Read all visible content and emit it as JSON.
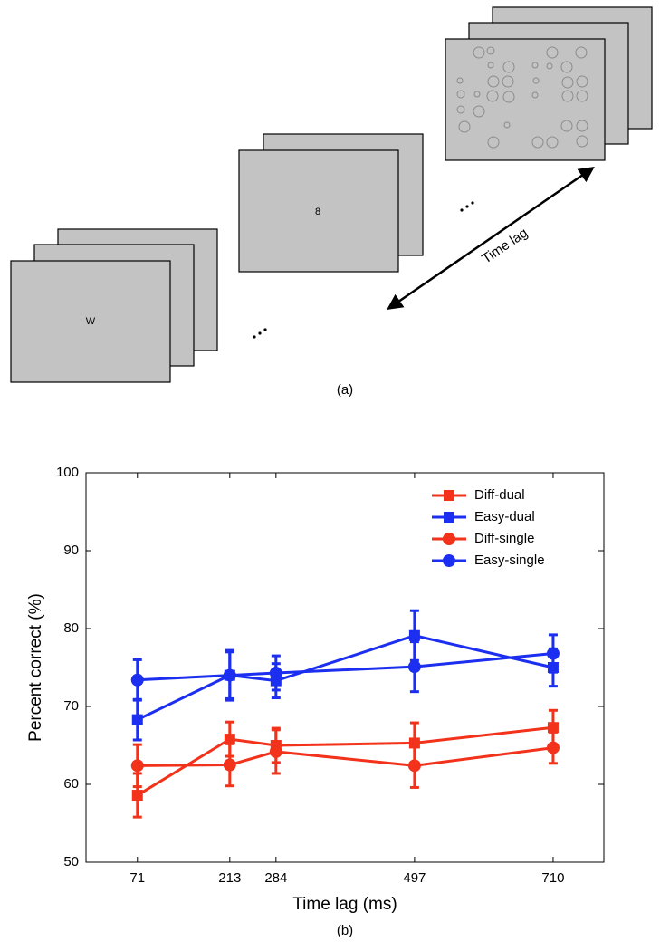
{
  "diagram": {
    "frames": [
      {
        "label": "W"
      },
      {
        "label": "8"
      }
    ],
    "arrow_label": "Time lag",
    "caption": "(a)"
  },
  "chart_data": {
    "type": "line",
    "caption": "(b)",
    "xlabel": "Time lag (ms)",
    "ylabel": "Percent correct (%)",
    "x": [
      71,
      213,
      284,
      497,
      710
    ],
    "xlim": [
      -8,
      788
    ],
    "xticks": [
      71,
      213,
      284,
      497,
      710
    ],
    "ylim": [
      50,
      100
    ],
    "yticks": [
      50,
      60,
      70,
      80,
      90,
      100
    ],
    "legend": "upper right",
    "series": [
      {
        "name": "Diff-dual",
        "color": "#f2321a",
        "marker": "square",
        "values": [
          58.6,
          65.8,
          65.0,
          65.3,
          67.3
        ],
        "errors": [
          2.8,
          2.2,
          2.2,
          2.6,
          2.2
        ]
      },
      {
        "name": "Easy-dual",
        "color": "#1c2ff0",
        "marker": "square",
        "values": [
          68.3,
          74.0,
          73.3,
          79.1,
          75.0
        ],
        "errors": [
          2.6,
          3.2,
          2.2,
          3.2,
          2.4
        ]
      },
      {
        "name": "Diff-single",
        "color": "#f2321a",
        "marker": "circle",
        "values": [
          62.4,
          62.5,
          64.2,
          62.4,
          64.7
        ],
        "errors": [
          2.7,
          2.7,
          2.8,
          2.8,
          2.0
        ]
      },
      {
        "name": "Easy-single",
        "color": "#1c2ff0",
        "marker": "circle",
        "values": [
          73.4,
          74.0,
          74.3,
          75.1,
          76.8
        ],
        "errors": [
          2.6,
          3.0,
          2.2,
          3.2,
          2.4
        ]
      }
    ]
  }
}
